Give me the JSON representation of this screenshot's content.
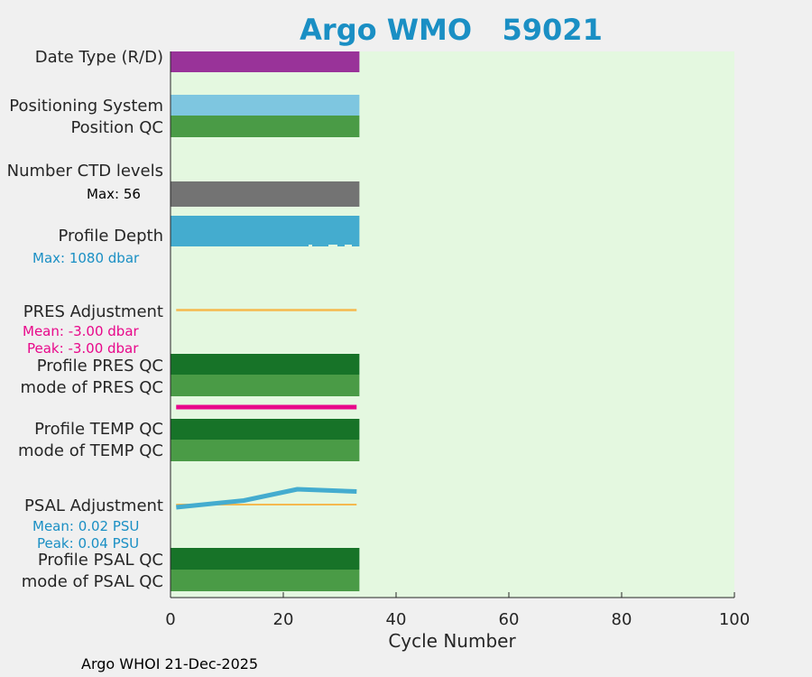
{
  "title": "Argo WMO   59021",
  "footer": "Argo WHOI 21-Dec-2025",
  "colors": {
    "background": "#f0f0f0",
    "plot_bg": "#e4f8e0",
    "title": "#1a8fc4",
    "date_type": "#993399",
    "positioning": "#7ec6e0",
    "qc_good": "#4a9b46",
    "qc_profile": "#177328",
    "ctd": "#737373",
    "depth": "#44accf",
    "adjust_line": "#f5b94e",
    "pink": "#e8088a",
    "cyan_text": "#1a8fc4"
  },
  "chart_data": {
    "type": "bar",
    "x_range": [
      0,
      100
    ],
    "x_ticks": [
      0,
      20,
      40,
      60,
      80,
      100
    ],
    "xlabel": "Cycle Number",
    "grid": false,
    "last_cycle": 33.5,
    "rows": [
      {
        "label": "Date Type (R/D)",
        "color_key": "date_type"
      },
      {
        "label": "Positioning System",
        "color_key": "positioning"
      },
      {
        "label": "Position QC",
        "color_key": "qc_good"
      },
      {
        "label": "Number CTD levels",
        "note": "Max: 56",
        "color_key": "ctd"
      },
      {
        "label": "Profile Depth",
        "note": "Max: 1080 dbar",
        "color_key": "depth"
      },
      {
        "label": "PRES Adjustment",
        "notes": [
          "Mean: -3.00 dbar",
          "Peak: -3.00 dbar"
        ],
        "color_key": "adjust_line"
      },
      {
        "label": "Profile PRES QC",
        "color_key": "qc_profile"
      },
      {
        "label": "mode of PRES QC",
        "color_key": "qc_good"
      },
      {
        "label": "Profile TEMP QC",
        "color_key": "qc_profile"
      },
      {
        "label": "mode of TEMP QC",
        "color_key": "qc_good"
      },
      {
        "label": "PSAL Adjustment",
        "notes": [
          "Mean: 0.02 PSU",
          "Peak: 0.04 PSU"
        ],
        "color_key": "adjust_line"
      },
      {
        "label": "Profile PSAL QC",
        "color_key": "qc_profile"
      },
      {
        "label": "mode of PSAL QC",
        "color_key": "qc_good"
      }
    ],
    "psal_adjustment": {
      "cycles": [
        1,
        13,
        22.5,
        33
      ],
      "values": [
        0.0,
        0.015,
        0.04,
        0.035
      ]
    }
  }
}
